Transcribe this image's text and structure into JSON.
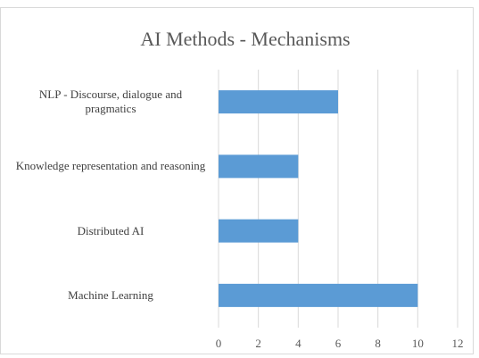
{
  "chart_data": {
    "type": "bar",
    "orientation": "horizontal",
    "title": "AI Methods - Mechanisms",
    "categories": [
      "NLP - Discourse, dialogue and pragmatics",
      "Knowledge representation and reasoning",
      "Distributed AI",
      "Machine Learning"
    ],
    "values": [
      6,
      4,
      4,
      10
    ],
    "color": "#5b9bd5",
    "xlim": [
      0,
      12
    ],
    "xticks": [
      0,
      2,
      4,
      6,
      8,
      10,
      12
    ],
    "grid": true
  }
}
